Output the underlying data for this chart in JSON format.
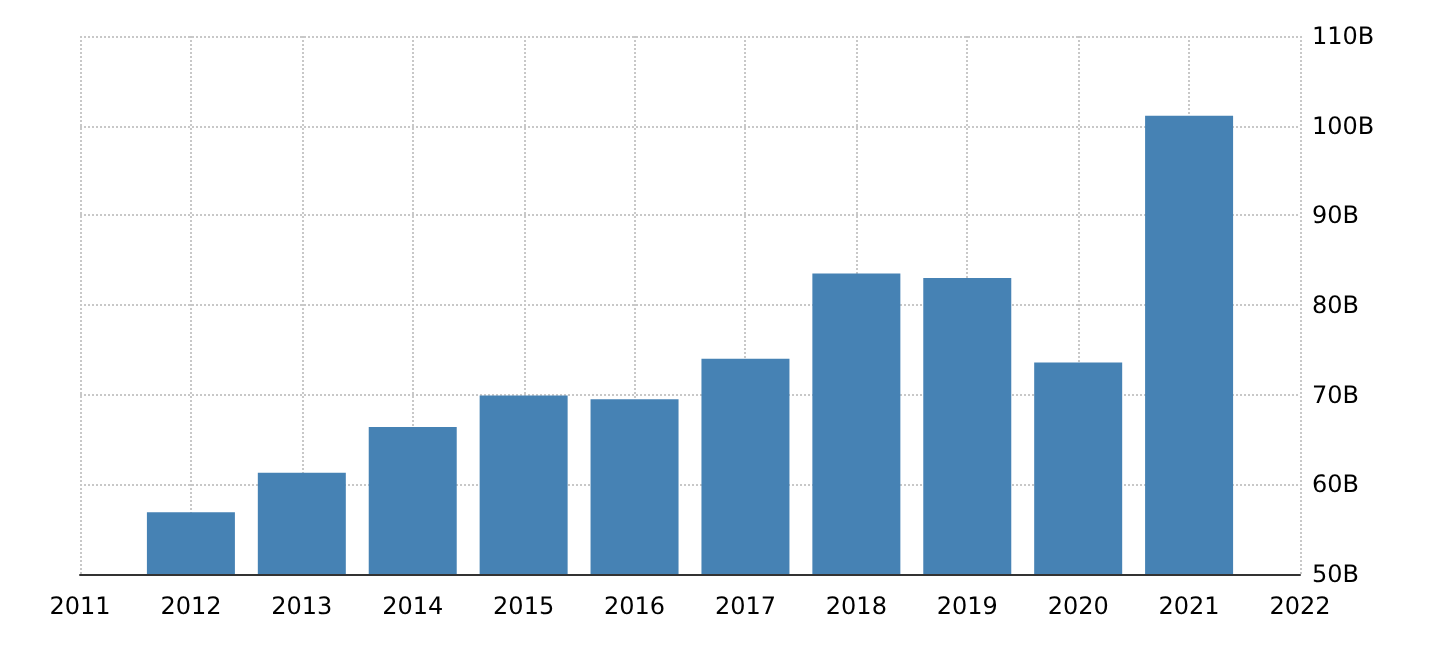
{
  "chart_data": {
    "type": "bar",
    "x": [
      2012,
      2013,
      2014,
      2015,
      2016,
      2017,
      2018,
      2019,
      2020,
      2021
    ],
    "values": [
      56.9,
      61.3,
      66.4,
      69.9,
      69.5,
      74.0,
      83.5,
      83.0,
      73.6,
      101.1
    ],
    "color": "#4682b4",
    "xlim": [
      2011,
      2022
    ],
    "xticks": [
      2011,
      2012,
      2013,
      2014,
      2015,
      2016,
      2017,
      2018,
      2019,
      2020,
      2021,
      2022
    ],
    "ylim": [
      50,
      110
    ],
    "yticks": [
      {
        "value": 50,
        "label": "50B"
      },
      {
        "value": 60,
        "label": "60B"
      },
      {
        "value": 70,
        "label": "70B"
      },
      {
        "value": 80,
        "label": "80B"
      },
      {
        "value": 90,
        "label": "90B"
      },
      {
        "value": 100,
        "label": "100B"
      },
      {
        "value": 110,
        "label": "110B"
      }
    ],
    "grid": true
  }
}
